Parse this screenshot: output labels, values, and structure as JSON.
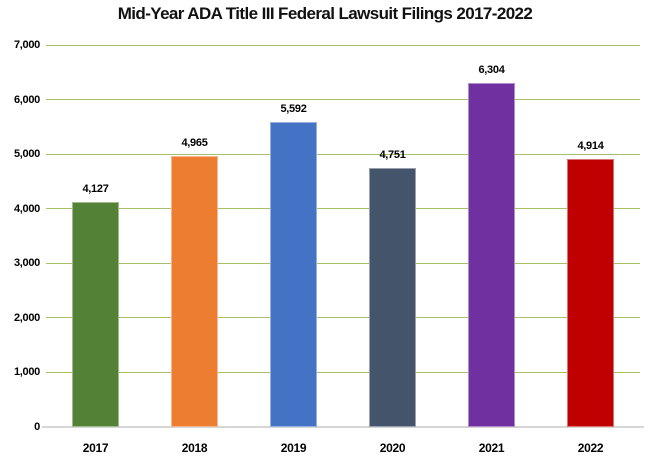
{
  "chart_data": {
    "type": "bar",
    "title": "Mid-Year ADA Title III Federal Lawsuit Filings 2017-2022",
    "categories": [
      "2017",
      "2018",
      "2019",
      "2020",
      "2021",
      "2022"
    ],
    "values": [
      4127,
      4965,
      5592,
      4751,
      6304,
      4914
    ],
    "value_labels": [
      "4,127",
      "4,965",
      "5,592",
      "4,751",
      "6,304",
      "4,914"
    ],
    "series": [
      {
        "name": "Mid-Year ADA Title III Federal Lawsuit Filings",
        "values": [
          4127,
          4965,
          5592,
          4751,
          6304,
          4914
        ]
      }
    ],
    "bar_colors": [
      "#538135",
      "#ED7D31",
      "#4472C4",
      "#44546A",
      "#7030A0",
      "#C00000"
    ],
    "bar_border_colors": [
      "#86ac66",
      "#f3a974",
      "#8faadc",
      "#8b99ab",
      "#a briefly",
      "#a894c4"
    ],
    "xlabel": "",
    "ylabel": "",
    "ylim": [
      0,
      7000
    ],
    "ytick_interval": 1000,
    "ytick_labels": [
      "0",
      "1,000",
      "2,000",
      "3,000",
      "4,000",
      "5,000",
      "6,000",
      "7,000"
    ],
    "grid": "horizontal",
    "gridline_color": "#a6c16a",
    "baseline_color": "#d6d6d6",
    "legend_position": "none",
    "background_color": "#ffffff",
    "text_color": "#000000"
  }
}
